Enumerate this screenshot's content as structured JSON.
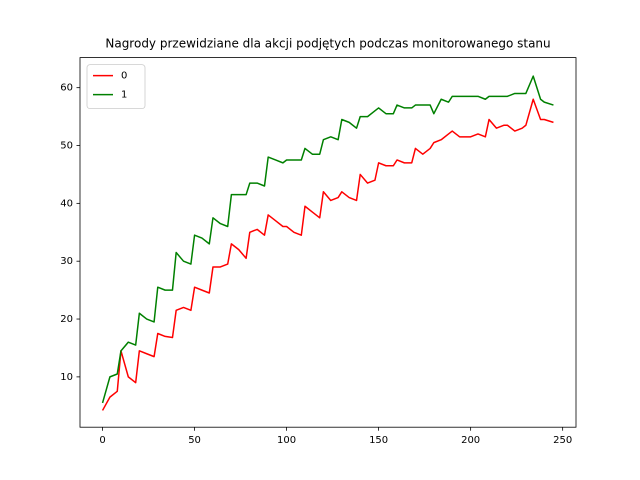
{
  "chart_data": {
    "type": "line",
    "title": "Nagrody przewidziane dla akcji podjętych podczas monitorowanego stanu",
    "x": [
      0,
      4,
      8,
      10,
      14,
      18,
      20,
      24,
      28,
      30,
      34,
      38,
      40,
      44,
      48,
      50,
      54,
      58,
      60,
      64,
      68,
      70,
      74,
      78,
      80,
      84,
      88,
      90,
      94,
      98,
      100,
      104,
      108,
      110,
      114,
      118,
      120,
      124,
      128,
      130,
      134,
      138,
      140,
      144,
      148,
      150,
      154,
      158,
      160,
      164,
      168,
      170,
      174,
      178,
      180,
      184,
      188,
      190,
      194,
      198,
      200,
      204,
      208,
      210,
      214,
      218,
      220,
      224,
      228,
      230,
      234,
      238,
      240,
      245
    ],
    "series": [
      {
        "name": "0",
        "color": "#ff0000",
        "values": [
          4.2,
          6.5,
          7.5,
          14.5,
          10,
          9,
          14.5,
          14,
          13.5,
          17.5,
          17,
          16.8,
          21.5,
          22,
          21.5,
          25.5,
          25,
          24.5,
          29,
          29,
          29.5,
          33,
          32,
          30.5,
          35,
          35.5,
          34.5,
          38,
          37,
          36,
          36,
          35,
          34.5,
          39.5,
          38.5,
          37.5,
          42,
          40.5,
          41,
          42,
          41,
          40.5,
          45,
          43.5,
          44,
          47,
          46.5,
          46.5,
          47.5,
          47,
          47,
          49.5,
          48.5,
          49.5,
          50.5,
          51,
          52,
          52.5,
          51.5,
          51.5,
          51.5,
          52,
          51.5,
          54.5,
          53,
          53.5,
          53.5,
          52.5,
          53,
          53.5,
          58,
          54.5,
          54.5,
          54
        ]
      },
      {
        "name": "1",
        "color": "#008000",
        "values": [
          5.5,
          10,
          10.5,
          14.5,
          16,
          15.5,
          21,
          20,
          19.5,
          25.5,
          25,
          25,
          31.5,
          30,
          29.5,
          34.5,
          34,
          33,
          37.5,
          36.5,
          36,
          41.5,
          41.5,
          41.5,
          43.5,
          43.5,
          43,
          48,
          47.5,
          47,
          47.5,
          47.5,
          47.5,
          49.5,
          48.5,
          48.5,
          51,
          51.5,
          51,
          54.5,
          54,
          53,
          55,
          55,
          56,
          56.5,
          55.5,
          55.5,
          57,
          56.5,
          56.5,
          57,
          57,
          57,
          55.5,
          58,
          57.5,
          58.5,
          58.5,
          58.5,
          58.5,
          58.5,
          58,
          58.5,
          58.5,
          58.5,
          58.5,
          59,
          59,
          59,
          62,
          58,
          57.5,
          57
        ]
      }
    ],
    "xlim": [
      -12.25,
      257.25
    ],
    "ylim": [
      1.3,
      65.2
    ],
    "xticks": [
      0,
      50,
      100,
      150,
      200,
      250
    ],
    "yticks": [
      10,
      20,
      30,
      40,
      50,
      60
    ],
    "legend": "upper left"
  }
}
